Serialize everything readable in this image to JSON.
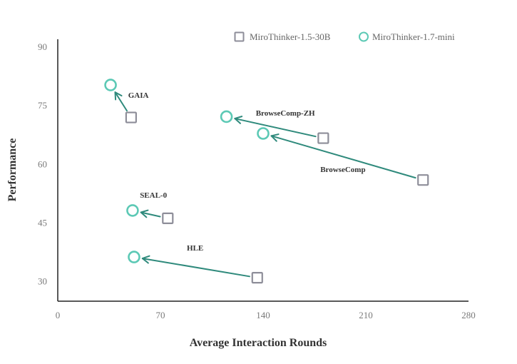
{
  "chart_data": {
    "type": "scatter",
    "xlabel": "Average Interaction Rounds",
    "ylabel": "Performance",
    "xlim": [
      0,
      280
    ],
    "ylim": [
      25,
      92
    ],
    "xticks": [
      0,
      70,
      140,
      210,
      280
    ],
    "xtick_labels": [
      "0",
      "70",
      "140",
      "210",
      "280"
    ],
    "yticks": [
      30,
      45,
      60,
      75,
      90
    ],
    "ytick_labels": [
      "30",
      "45",
      "60",
      "75",
      "90"
    ],
    "grid": false,
    "legend_position": "top-right",
    "colors": {
      "baseline": "#8e8e99",
      "new": "#5cc9b5",
      "arrow": "#2f8a7c",
      "axis": "#222222"
    },
    "series": [
      {
        "name": "MiroThinker-1.5-30B",
        "marker": "square",
        "points": [
          {
            "benchmark": "GAIA",
            "x": 50,
            "y": 72
          },
          {
            "benchmark": "BrowseComp-ZH",
            "x": 181,
            "y": 66.7
          },
          {
            "benchmark": "BrowseComp",
            "x": 249,
            "y": 56
          },
          {
            "benchmark": "SEAL-0",
            "x": 75,
            "y": 46.2
          },
          {
            "benchmark": "HLE",
            "x": 136,
            "y": 31
          }
        ]
      },
      {
        "name": "MiroThinker-1.7-mini",
        "marker": "circle",
        "points": [
          {
            "benchmark": "GAIA",
            "x": 36,
            "y": 80.3
          },
          {
            "benchmark": "BrowseComp-ZH",
            "x": 115,
            "y": 72.2
          },
          {
            "benchmark": "BrowseComp",
            "x": 140,
            "y": 67.9
          },
          {
            "benchmark": "SEAL-0",
            "x": 51,
            "y": 48.2
          },
          {
            "benchmark": "HLE",
            "x": 52,
            "y": 36.3
          }
        ]
      }
    ],
    "annotations": [
      {
        "text": "GAIA",
        "x": 48,
        "y": 77
      },
      {
        "text": "BrowseComp-ZH",
        "x": 135,
        "y": 72.5
      },
      {
        "text": "BrowseComp",
        "x": 179,
        "y": 58
      },
      {
        "text": "SEAL-0",
        "x": 56,
        "y": 51.5
      },
      {
        "text": "HLE",
        "x": 88,
        "y": 38
      }
    ]
  }
}
